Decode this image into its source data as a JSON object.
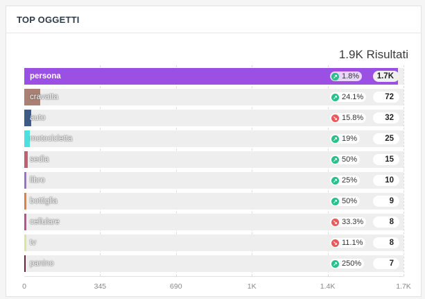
{
  "title": "TOP OGGETTI",
  "results_label": "1.9K Risultati",
  "colors": {
    "up": "#2bbf8a",
    "down": "#ea5a5a"
  },
  "chart_data": {
    "type": "bar",
    "orientation": "horizontal",
    "categories": [
      "persona",
      "cravatta",
      "auto",
      "motocicletta",
      "sedia",
      "libro",
      "bottiglia",
      "cellulare",
      "tv",
      "panino"
    ],
    "values": [
      1700,
      72,
      32,
      25,
      15,
      10,
      9,
      8,
      8,
      7
    ],
    "value_labels": [
      "1.7K",
      "72",
      "32",
      "25",
      "15",
      "10",
      "9",
      "8",
      "8",
      "7"
    ],
    "changes": [
      "1.8%",
      "24.1%",
      "15.8%",
      "19%",
      "50%",
      "25%",
      "50%",
      "33.3%",
      "11.1%",
      "250%"
    ],
    "change_direction": [
      "up",
      "up",
      "down",
      "up",
      "up",
      "up",
      "up",
      "down",
      "down",
      "up"
    ],
    "bar_colors": [
      "#9b4fe3",
      "#a98073",
      "#3c5a8a",
      "#4ee0e0",
      "#c06070",
      "#a070c8",
      "#e0803a",
      "#c0508a",
      "#d8e6a0",
      "#6a2040"
    ],
    "x_ticks": [
      "0",
      "345",
      "690",
      "1K",
      "1.4K",
      "1.7K"
    ],
    "x_tick_values": [
      0,
      345,
      690,
      1035,
      1380,
      1725
    ],
    "xlim": [
      0,
      1725
    ],
    "grid": true
  }
}
